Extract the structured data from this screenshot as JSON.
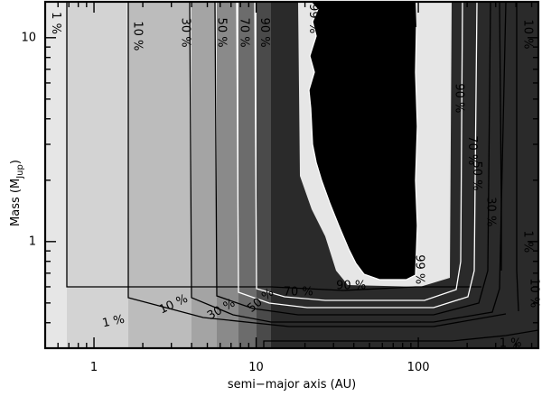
{
  "chart_data": {
    "type": "heatmap",
    "title": "",
    "xlabel": "semi−major axis (AU)",
    "ylabel": "Mass (M",
    "ylabel_sub": "Jup",
    "ylabel_close": ")",
    "x_scale": "log",
    "y_scale": "log",
    "xlim": [
      0.5,
      550
    ],
    "ylim": [
      0.3,
      15
    ],
    "x_ticks": [
      {
        "value": 1,
        "label": "1"
      },
      {
        "value": 10,
        "label": "10"
      },
      {
        "value": 100,
        "label": "100"
      }
    ],
    "y_ticks": [
      {
        "value": 1,
        "label": "1"
      },
      {
        "value": 10,
        "label": "10"
      }
    ],
    "fill_colors": {
      "l1": "#e6e6e6",
      "l2": "#d3d3d3",
      "l3": "#bcbcbc",
      "l4": "#a4a4a4",
      "l5": "#8a8a8a",
      "l6": "#6c6c6c",
      "l7": "#4a4a4a",
      "l8": "#2a2a2a",
      "l9": "#000000"
    },
    "contour_levels": [
      1,
      10,
      30,
      50,
      70,
      90,
      99
    ],
    "contour_labels": [
      {
        "text": "1 %",
        "x": 0.58,
        "y": 11.8,
        "rot": 90,
        "color": "#000000"
      },
      {
        "text": "10 %",
        "x": 1.85,
        "y": 10.2,
        "rot": 90,
        "color": "#000000"
      },
      {
        "text": "30 %",
        "x": 3.65,
        "y": 10.6,
        "rot": 90,
        "color": "#000000"
      },
      {
        "text": "50 %",
        "x": 6.1,
        "y": 10.6,
        "rot": 90,
        "color": "#000000"
      },
      {
        "text": "70 %",
        "x": 8.4,
        "y": 10.6,
        "rot": 90,
        "color": "#ffffff"
      },
      {
        "text": "90 %",
        "x": 11.2,
        "y": 10.6,
        "rot": 90,
        "color": "#ffffff"
      },
      {
        "text": "99 %",
        "x": 22.4,
        "y": 12.4,
        "rot": 90,
        "color": "#ffffff"
      },
      {
        "text": "90 %",
        "x": 178,
        "y": 5.05,
        "rot": 90,
        "color": "#ffffff"
      },
      {
        "text": "70 %",
        "x": 214,
        "y": 2.8,
        "rot": 90,
        "color": "#ffffff"
      },
      {
        "text": "50 %",
        "x": 228,
        "y": 2.1,
        "rot": 90,
        "color": "#000000"
      },
      {
        "text": "30 %",
        "x": 278,
        "y": 1.4,
        "rot": 90,
        "color": "#000000"
      },
      {
        "text": "10 %",
        "x": 470,
        "y": 10.4,
        "rot": 90,
        "color": "#000000"
      },
      {
        "text": "1 %",
        "x": 470,
        "y": 1.0,
        "rot": 90,
        "color": "#000000"
      },
      {
        "text": "10 %",
        "x": 515,
        "y": 0.56,
        "rot": 90,
        "color": "#000000"
      },
      {
        "text": "99 %",
        "x": 101,
        "y": 0.73,
        "rot": 90,
        "color": "#000000"
      },
      {
        "text": "90 %",
        "x": 38.5,
        "y": 0.607,
        "rot": 0,
        "color": "#000000"
      },
      {
        "text": "70 %",
        "x": 18.2,
        "y": 0.565,
        "rot": 0,
        "color": "#000000"
      },
      {
        "text": "50 %",
        "x": 10.7,
        "y": 0.513,
        "rot": -40,
        "color": "#000000"
      },
      {
        "text": "30 %",
        "x": 6.1,
        "y": 0.463,
        "rot": -30,
        "color": "#000000"
      },
      {
        "text": "10 %",
        "x": 3.1,
        "y": 0.491,
        "rot": -25,
        "color": "#000000"
      },
      {
        "text": "1 %",
        "x": 1.32,
        "y": 0.405,
        "rot": -12,
        "color": "#000000"
      },
      {
        "text": "1 %",
        "x": 370,
        "y": 0.315,
        "rot": 0,
        "color": "#000000"
      }
    ]
  }
}
